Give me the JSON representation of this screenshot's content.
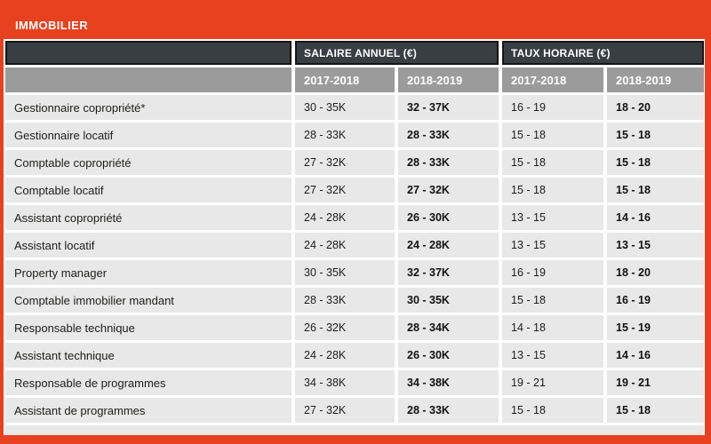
{
  "header": {
    "title": "IMMOBILIER"
  },
  "chart_data": {
    "type": "table",
    "title": "IMMOBILIER",
    "column_groups": [
      "SALAIRE ANNUEL (€)",
      "TAUX HORAIRE (€)"
    ],
    "period_columns": [
      "2017-2018",
      "2018-2019",
      "2017-2018",
      "2018-2019"
    ],
    "rows": [
      {
        "label": "Gestionnaire copropriété*",
        "salary_prev": "30 - 35K",
        "salary_curr": "32 - 37K",
        "hourly_prev": "16 - 19",
        "hourly_curr": "18 - 20"
      },
      {
        "label": "Gestionnaire locatif",
        "salary_prev": "28 - 33K",
        "salary_curr": "28 - 33K",
        "hourly_prev": "15 - 18",
        "hourly_curr": "15 - 18"
      },
      {
        "label": "Comptable copropriété",
        "salary_prev": "27 - 32K",
        "salary_curr": "28 - 33K",
        "hourly_prev": "15 - 18",
        "hourly_curr": "15 - 18"
      },
      {
        "label": "Comptable locatif",
        "salary_prev": "27 - 32K",
        "salary_curr": "27 - 32K",
        "hourly_prev": "15 - 18",
        "hourly_curr": "15 - 18"
      },
      {
        "label": "Assistant copropriété",
        "salary_prev": "24 - 28K",
        "salary_curr": "26 - 30K",
        "hourly_prev": "13 - 15",
        "hourly_curr": "14 - 16"
      },
      {
        "label": "Assistant locatif",
        "salary_prev": "24 - 28K",
        "salary_curr": "24 - 28K",
        "hourly_prev": "13 - 15",
        "hourly_curr": "13 - 15"
      },
      {
        "label": "Property manager",
        "salary_prev": "30 - 35K",
        "salary_curr": "32 - 37K",
        "hourly_prev": "16 - 19",
        "hourly_curr": "18 - 20"
      },
      {
        "label": "Comptable immobilier mandant",
        "salary_prev": "28 - 33K",
        "salary_curr": "30 - 35K",
        "hourly_prev": "15 - 18",
        "hourly_curr": "16 - 19"
      },
      {
        "label": "Responsable technique",
        "salary_prev": "26 - 32K",
        "salary_curr": "28 - 34K",
        "hourly_prev": "14 - 18",
        "hourly_curr": "15 - 19"
      },
      {
        "label": "Assistant technique",
        "salary_prev": "24 - 28K",
        "salary_curr": "26 - 30K",
        "hourly_prev": "13 - 15",
        "hourly_curr": "14 - 16"
      },
      {
        "label": "Responsable de programmes",
        "salary_prev": "34 - 38K",
        "salary_curr": "34 - 38K",
        "hourly_prev": "19 - 21",
        "hourly_curr": "19 - 21"
      },
      {
        "label": "Assistant de programmes",
        "salary_prev": "27 - 32K",
        "salary_curr": "28 - 33K",
        "hourly_prev": "15 - 18",
        "hourly_curr": "15 - 18"
      }
    ]
  },
  "colors": {
    "accent_red": "#e8411f",
    "header_dark": "#383e44",
    "header_gray": "#9b9b9b",
    "row_gray": "#e8e8e8",
    "text_dark": "#1d1d1b"
  }
}
